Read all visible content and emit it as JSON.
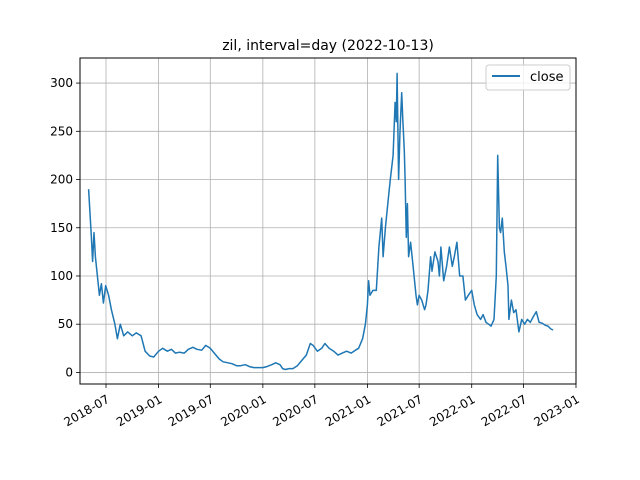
{
  "chart_data": {
    "type": "line",
    "title": "zil, interval=day (2022-10-13)",
    "xlabel": "",
    "ylabel": "",
    "x_range": [
      "2018-04-01",
      "2023-01-01"
    ],
    "ylim": [
      -12,
      326
    ],
    "grid": true,
    "legend_placement": "top-right",
    "x_ticks": [
      "2018-07",
      "2019-01",
      "2019-07",
      "2020-01",
      "2020-07",
      "2021-01",
      "2021-07",
      "2022-01",
      "2022-07",
      "2023-01"
    ],
    "y_ticks": [
      0,
      50,
      100,
      150,
      200,
      250,
      300
    ],
    "series": [
      {
        "name": "close",
        "color": "#1f77b4",
        "points": [
          [
            "2018-05-01",
            190
          ],
          [
            "2018-05-06",
            165
          ],
          [
            "2018-05-11",
            140
          ],
          [
            "2018-05-15",
            115
          ],
          [
            "2018-05-20",
            145
          ],
          [
            "2018-05-25",
            120
          ],
          [
            "2018-06-01",
            100
          ],
          [
            "2018-06-08",
            80
          ],
          [
            "2018-06-15",
            92
          ],
          [
            "2018-06-22",
            72
          ],
          [
            "2018-06-30",
            90
          ],
          [
            "2018-07-10",
            80
          ],
          [
            "2018-07-20",
            65
          ],
          [
            "2018-08-01",
            50
          ],
          [
            "2018-08-10",
            35
          ],
          [
            "2018-08-20",
            50
          ],
          [
            "2018-09-01",
            38
          ],
          [
            "2018-09-15",
            42
          ],
          [
            "2018-10-01",
            38
          ],
          [
            "2018-10-15",
            41
          ],
          [
            "2018-11-01",
            38
          ],
          [
            "2018-11-15",
            22
          ],
          [
            "2018-12-01",
            17
          ],
          [
            "2018-12-15",
            16
          ],
          [
            "2019-01-01",
            22
          ],
          [
            "2019-01-15",
            25
          ],
          [
            "2019-02-01",
            22
          ],
          [
            "2019-02-15",
            24
          ],
          [
            "2019-03-01",
            20
          ],
          [
            "2019-03-15",
            21
          ],
          [
            "2019-04-01",
            20
          ],
          [
            "2019-04-15",
            24
          ],
          [
            "2019-05-01",
            26
          ],
          [
            "2019-05-15",
            24
          ],
          [
            "2019-06-01",
            23
          ],
          [
            "2019-06-15",
            28
          ],
          [
            "2019-07-01",
            25
          ],
          [
            "2019-07-15",
            20
          ],
          [
            "2019-08-01",
            14
          ],
          [
            "2019-08-15",
            11
          ],
          [
            "2019-09-01",
            10
          ],
          [
            "2019-09-15",
            9
          ],
          [
            "2019-10-01",
            7
          ],
          [
            "2019-10-15",
            7
          ],
          [
            "2019-11-01",
            8
          ],
          [
            "2019-11-15",
            6
          ],
          [
            "2019-12-01",
            5
          ],
          [
            "2019-12-15",
            5
          ],
          [
            "2020-01-01",
            5
          ],
          [
            "2020-01-15",
            6
          ],
          [
            "2020-02-01",
            8
          ],
          [
            "2020-02-15",
            10
          ],
          [
            "2020-03-01",
            8
          ],
          [
            "2020-03-10",
            4
          ],
          [
            "2020-03-20",
            3
          ],
          [
            "2020-04-01",
            4
          ],
          [
            "2020-04-15",
            4
          ],
          [
            "2020-05-01",
            7
          ],
          [
            "2020-05-15",
            12
          ],
          [
            "2020-06-01",
            18
          ],
          [
            "2020-06-15",
            30
          ],
          [
            "2020-06-25",
            28
          ],
          [
            "2020-07-10",
            22
          ],
          [
            "2020-07-25",
            25
          ],
          [
            "2020-08-05",
            30
          ],
          [
            "2020-08-20",
            25
          ],
          [
            "2020-09-05",
            22
          ],
          [
            "2020-09-20",
            18
          ],
          [
            "2020-10-05",
            20
          ],
          [
            "2020-10-20",
            22
          ],
          [
            "2020-11-05",
            20
          ],
          [
            "2020-11-20",
            23
          ],
          [
            "2020-12-01",
            25
          ],
          [
            "2020-12-15",
            35
          ],
          [
            "2020-12-25",
            50
          ],
          [
            "2021-01-01",
            70
          ],
          [
            "2021-01-05",
            95
          ],
          [
            "2021-01-10",
            80
          ],
          [
            "2021-01-20",
            85
          ],
          [
            "2021-02-01",
            85
          ],
          [
            "2021-02-10",
            130
          ],
          [
            "2021-02-20",
            160
          ],
          [
            "2021-02-25",
            120
          ],
          [
            "2021-03-05",
            150
          ],
          [
            "2021-03-15",
            180
          ],
          [
            "2021-03-22",
            200
          ],
          [
            "2021-04-01",
            225
          ],
          [
            "2021-04-08",
            280
          ],
          [
            "2021-04-12",
            260
          ],
          [
            "2021-04-15",
            310
          ],
          [
            "2021-04-20",
            200
          ],
          [
            "2021-04-25",
            250
          ],
          [
            "2021-05-01",
            290
          ],
          [
            "2021-05-05",
            260
          ],
          [
            "2021-05-10",
            230
          ],
          [
            "2021-05-13",
            200
          ],
          [
            "2021-05-17",
            140
          ],
          [
            "2021-05-21",
            175
          ],
          [
            "2021-05-25",
            120
          ],
          [
            "2021-06-01",
            135
          ],
          [
            "2021-06-10",
            110
          ],
          [
            "2021-06-20",
            80
          ],
          [
            "2021-06-25",
            70
          ],
          [
            "2021-07-01",
            80
          ],
          [
            "2021-07-10",
            75
          ],
          [
            "2021-07-20",
            65
          ],
          [
            "2021-07-25",
            70
          ],
          [
            "2021-08-01",
            85
          ],
          [
            "2021-08-10",
            120
          ],
          [
            "2021-08-15",
            105
          ],
          [
            "2021-08-25",
            125
          ],
          [
            "2021-09-05",
            115
          ],
          [
            "2021-09-10",
            100
          ],
          [
            "2021-09-15",
            130
          ],
          [
            "2021-09-25",
            95
          ],
          [
            "2021-10-05",
            110
          ],
          [
            "2021-10-15",
            130
          ],
          [
            "2021-10-25",
            110
          ],
          [
            "2021-11-01",
            120
          ],
          [
            "2021-11-10",
            135
          ],
          [
            "2021-11-20",
            100
          ],
          [
            "2021-12-01",
            100
          ],
          [
            "2021-12-10",
            75
          ],
          [
            "2021-12-20",
            80
          ],
          [
            "2022-01-01",
            85
          ],
          [
            "2022-01-10",
            70
          ],
          [
            "2022-01-20",
            60
          ],
          [
            "2022-02-01",
            55
          ],
          [
            "2022-02-10",
            60
          ],
          [
            "2022-02-20",
            52
          ],
          [
            "2022-03-01",
            50
          ],
          [
            "2022-03-10",
            48
          ],
          [
            "2022-03-20",
            55
          ],
          [
            "2022-03-28",
            100
          ],
          [
            "2022-04-02",
            225
          ],
          [
            "2022-04-08",
            150
          ],
          [
            "2022-04-12",
            145
          ],
          [
            "2022-04-18",
            160
          ],
          [
            "2022-04-25",
            125
          ],
          [
            "2022-05-01",
            110
          ],
          [
            "2022-05-08",
            90
          ],
          [
            "2022-05-11",
            55
          ],
          [
            "2022-05-20",
            75
          ],
          [
            "2022-05-28",
            62
          ],
          [
            "2022-06-05",
            65
          ],
          [
            "2022-06-15",
            42
          ],
          [
            "2022-06-25",
            55
          ],
          [
            "2022-07-05",
            50
          ],
          [
            "2022-07-15",
            55
          ],
          [
            "2022-07-25",
            52
          ],
          [
            "2022-08-05",
            58
          ],
          [
            "2022-08-15",
            63
          ],
          [
            "2022-08-25",
            52
          ],
          [
            "2022-09-05",
            51
          ],
          [
            "2022-09-15",
            49
          ],
          [
            "2022-09-25",
            48
          ],
          [
            "2022-10-05",
            45
          ],
          [
            "2022-10-13",
            44
          ]
        ]
      }
    ]
  }
}
